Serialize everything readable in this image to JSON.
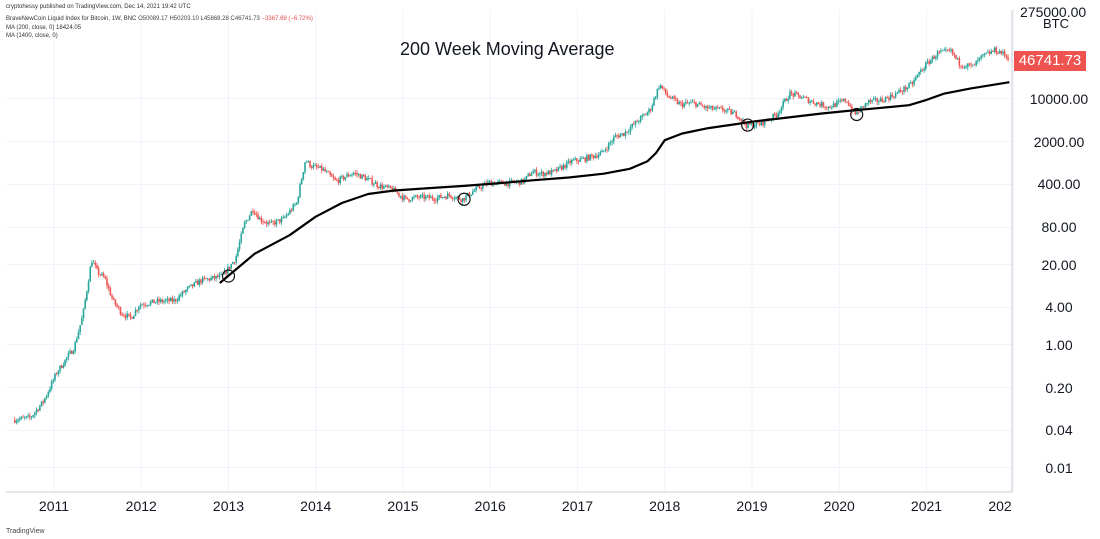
{
  "header": {
    "published": "cryptohessy published on TradingView.com, Dec 14, 2021 19:42 UTC",
    "symbol": "BraveNewCoin Liquid Index for Bitcoin, 1W, BNC",
    "ohlc_o": "O50089.17",
    "ohlc_h": "H50203.10",
    "ohlc_l": "L45868.28",
    "ohlc_c": "C46741.73",
    "change": "−3367.69 (−6.72%)",
    "ma200_label": "MA (200, close, 0)",
    "ma200_value": "18424.05",
    "ma1400_label": "MA (1400, close, 0)"
  },
  "footer": "TradingView",
  "price_axis": {
    "unit": "BTC",
    "top_label": "275000.00",
    "last_price": "46741.73",
    "last_price_color": "#ef5350"
  },
  "colors": {
    "up": "#26a69a",
    "down": "#ef5350",
    "ma": "#000000"
  },
  "chart_data": {
    "type": "candlestick",
    "title": "200 Week Moving Average",
    "scale": "log",
    "x_ticks": [
      "2011",
      "2012",
      "2013",
      "2014",
      "2015",
      "2016",
      "2017",
      "2018",
      "2019",
      "2020",
      "2021",
      "202"
    ],
    "y_ticks": [
      "10000.00",
      "2000.00",
      "400.00",
      "80.00",
      "20.00",
      "4.00",
      "1.00",
      "0.20",
      "0.04",
      "0.01"
    ],
    "y_tick_values": [
      10000,
      2000,
      400,
      80,
      20,
      4,
      1,
      0.2,
      0.04,
      0.01
    ],
    "ylim": [
      0.004,
      275000
    ],
    "xlim": [
      2010.45,
      2021.98
    ],
    "price_path": [
      [
        2010.55,
        0.06
      ],
      [
        2010.75,
        0.065
      ],
      [
        2010.9,
        0.12
      ],
      [
        2011.05,
        0.35
      ],
      [
        2011.25,
        0.9
      ],
      [
        2011.35,
        3
      ],
      [
        2011.45,
        24
      ],
      [
        2011.52,
        15
      ],
      [
        2011.6,
        12
      ],
      [
        2011.7,
        5
      ],
      [
        2011.8,
        3.2
      ],
      [
        2011.9,
        2.7
      ],
      [
        2012.0,
        4.5
      ],
      [
        2012.2,
        5
      ],
      [
        2012.4,
        5.2
      ],
      [
        2012.55,
        8
      ],
      [
        2012.7,
        11
      ],
      [
        2012.85,
        12
      ],
      [
        2012.95,
        13
      ],
      [
        2013.1,
        25
      ],
      [
        2013.2,
        90
      ],
      [
        2013.3,
        160
      ],
      [
        2013.38,
        110
      ],
      [
        2013.5,
        90
      ],
      [
        2013.65,
        110
      ],
      [
        2013.8,
        200
      ],
      [
        2013.9,
        1000
      ],
      [
        2013.97,
        800
      ],
      [
        2014.1,
        700
      ],
      [
        2014.25,
        450
      ],
      [
        2014.45,
        620
      ],
      [
        2014.6,
        500
      ],
      [
        2014.75,
        380
      ],
      [
        2014.9,
        330
      ],
      [
        2015.05,
        230
      ],
      [
        2015.2,
        250
      ],
      [
        2015.4,
        240
      ],
      [
        2015.55,
        270
      ],
      [
        2015.7,
        230
      ],
      [
        2015.85,
        330
      ],
      [
        2016.0,
        430
      ],
      [
        2016.2,
        420
      ],
      [
        2016.4,
        450
      ],
      [
        2016.5,
        650
      ],
      [
        2016.6,
        600
      ],
      [
        2016.75,
        640
      ],
      [
        2016.95,
        950
      ],
      [
        2017.1,
        1050
      ],
      [
        2017.3,
        1300
      ],
      [
        2017.45,
        2400
      ],
      [
        2017.55,
        2700
      ],
      [
        2017.7,
        4200
      ],
      [
        2017.85,
        6500
      ],
      [
        2017.96,
        17000
      ],
      [
        2018.05,
        11000
      ],
      [
        2018.2,
        8000
      ],
      [
        2018.35,
        8500
      ],
      [
        2018.5,
        7000
      ],
      [
        2018.7,
        6500
      ],
      [
        2018.85,
        5500
      ],
      [
        2018.95,
        3700
      ],
      [
        2019.1,
        3800
      ],
      [
        2019.3,
        5500
      ],
      [
        2019.45,
        12000
      ],
      [
        2019.55,
        11000
      ],
      [
        2019.7,
        9000
      ],
      [
        2019.9,
        7300
      ],
      [
        2020.1,
        9500
      ],
      [
        2020.2,
        5500
      ],
      [
        2020.35,
        8800
      ],
      [
        2020.5,
        9400
      ],
      [
        2020.65,
        11500
      ],
      [
        2020.85,
        17000
      ],
      [
        2020.95,
        28000
      ],
      [
        2021.05,
        40000
      ],
      [
        2021.15,
        55000
      ],
      [
        2021.3,
        58000
      ],
      [
        2021.4,
        37000
      ],
      [
        2021.55,
        33000
      ],
      [
        2021.65,
        47000
      ],
      [
        2021.8,
        61000
      ],
      [
        2021.87,
        57000
      ],
      [
        2021.95,
        46741.73
      ]
    ],
    "ma_200w": [
      [
        2012.9,
        10
      ],
      [
        2013.3,
        30
      ],
      [
        2013.7,
        60
      ],
      [
        2014.0,
        120
      ],
      [
        2014.3,
        200
      ],
      [
        2014.6,
        280
      ],
      [
        2014.9,
        320
      ],
      [
        2015.3,
        350
      ],
      [
        2015.7,
        380
      ],
      [
        2016.1,
        420
      ],
      [
        2016.5,
        470
      ],
      [
        2016.9,
        520
      ],
      [
        2017.3,
        600
      ],
      [
        2017.6,
        720
      ],
      [
        2017.8,
        950
      ],
      [
        2017.9,
        1300
      ],
      [
        2018.0,
        2100
      ],
      [
        2018.2,
        2700
      ],
      [
        2018.5,
        3300
      ],
      [
        2018.8,
        3800
      ],
      [
        2019.0,
        4200
      ],
      [
        2019.4,
        4900
      ],
      [
        2019.8,
        5700
      ],
      [
        2020.1,
        6300
      ],
      [
        2020.5,
        7100
      ],
      [
        2020.8,
        7800
      ],
      [
        2021.0,
        9500
      ],
      [
        2021.2,
        12000
      ],
      [
        2021.5,
        14500
      ],
      [
        2021.8,
        17000
      ],
      [
        2021.95,
        18424.05
      ]
    ],
    "touch_points": [
      [
        2013.0,
        13
      ],
      [
        2015.7,
        230
      ],
      [
        2018.95,
        3700
      ],
      [
        2020.2,
        5500
      ]
    ]
  }
}
